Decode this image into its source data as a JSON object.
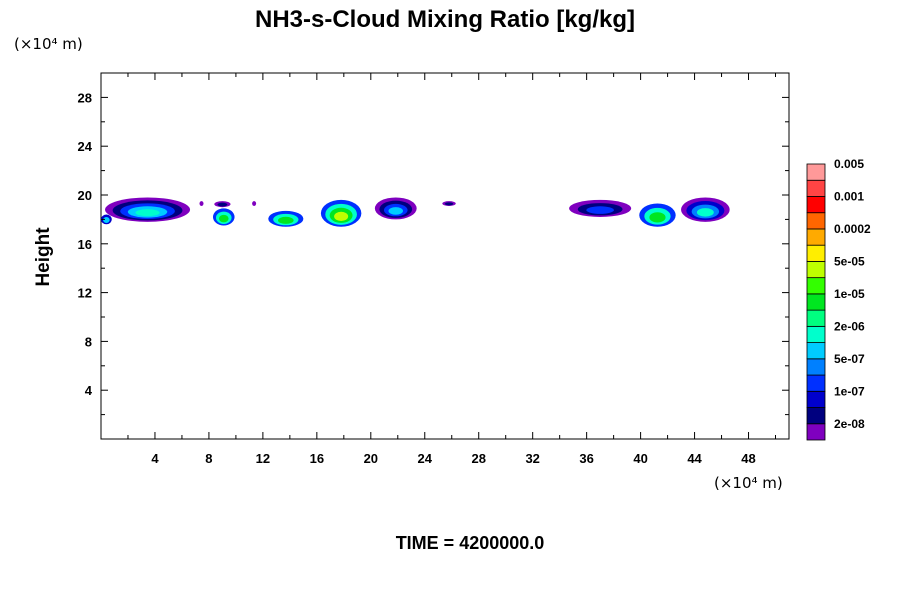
{
  "chart_data": {
    "type": "heatmap",
    "title": "NH3-s-Cloud Mixing Ratio [kg/kg]",
    "ylabel": "Height",
    "x_unit": "(×10⁴ m)",
    "y_unit": "(×10⁴ m)",
    "footer": "TIME = 4200000.0",
    "xlim": [
      0,
      51
    ],
    "ylim": [
      0,
      30
    ],
    "x_ticks": [
      "4",
      "8",
      "12",
      "16",
      "20",
      "24",
      "28",
      "32",
      "36",
      "40",
      "44",
      "48"
    ],
    "y_ticks": [
      "4",
      "8",
      "12",
      "16",
      "20",
      "24",
      "28"
    ],
    "legend": {
      "colors": [
        "#7f00bf",
        "#00007f",
        "#0000cc",
        "#0030ff",
        "#0080ff",
        "#00ccff",
        "#00ffcc",
        "#00ff80",
        "#00e620",
        "#33ff00",
        "#bfff00",
        "#ffee00",
        "#ffaa00",
        "#ff6600",
        "#ff0000",
        "#ff4444",
        "#ff9999"
      ],
      "labels": [
        "2e-08",
        "1e-07",
        "5e-07",
        "2e-06",
        "1e-05",
        "5e-05",
        "0.0002",
        "0.001",
        "0.005"
      ]
    },
    "clouds": [
      {
        "x0": 0.3,
        "x1": 6.6,
        "y0": 17.8,
        "y1": 19.8,
        "levels": [
          0,
          1,
          3,
          5,
          6
        ]
      },
      {
        "x0": 0.0,
        "x1": 0.8,
        "y0": 17.6,
        "y1": 18.4,
        "levels": [
          2,
          5
        ]
      },
      {
        "x0": 7.3,
        "x1": 7.6,
        "y0": 19.1,
        "y1": 19.5,
        "levels": [
          0
        ]
      },
      {
        "x0": 8.4,
        "x1": 9.6,
        "y0": 19.0,
        "y1": 19.5,
        "levels": [
          0,
          1
        ]
      },
      {
        "x0": 11.2,
        "x1": 11.5,
        "y0": 19.1,
        "y1": 19.5,
        "levels": [
          0
        ]
      },
      {
        "x0": 8.3,
        "x1": 9.9,
        "y0": 17.5,
        "y1": 18.9,
        "levels": [
          3,
          6,
          8
        ]
      },
      {
        "x0": 12.4,
        "x1": 15.0,
        "y0": 17.4,
        "y1": 18.7,
        "levels": [
          3,
          6,
          8
        ]
      },
      {
        "x0": 16.3,
        "x1": 19.3,
        "y0": 17.4,
        "y1": 19.6,
        "levels": [
          3,
          6,
          8,
          10
        ]
      },
      {
        "x0": 20.3,
        "x1": 23.4,
        "y0": 18.0,
        "y1": 19.8,
        "levels": [
          0,
          1,
          3,
          5
        ]
      },
      {
        "x0": 25.3,
        "x1": 26.3,
        "y0": 19.1,
        "y1": 19.5,
        "levels": [
          0,
          1
        ]
      },
      {
        "x0": 34.7,
        "x1": 39.3,
        "y0": 18.2,
        "y1": 19.6,
        "levels": [
          0,
          1,
          3
        ]
      },
      {
        "x0": 39.9,
        "x1": 42.6,
        "y0": 17.4,
        "y1": 19.3,
        "levels": [
          3,
          6,
          8
        ]
      },
      {
        "x0": 43.0,
        "x1": 46.6,
        "y0": 17.8,
        "y1": 19.8,
        "levels": [
          0,
          2,
          4,
          6
        ]
      }
    ]
  }
}
